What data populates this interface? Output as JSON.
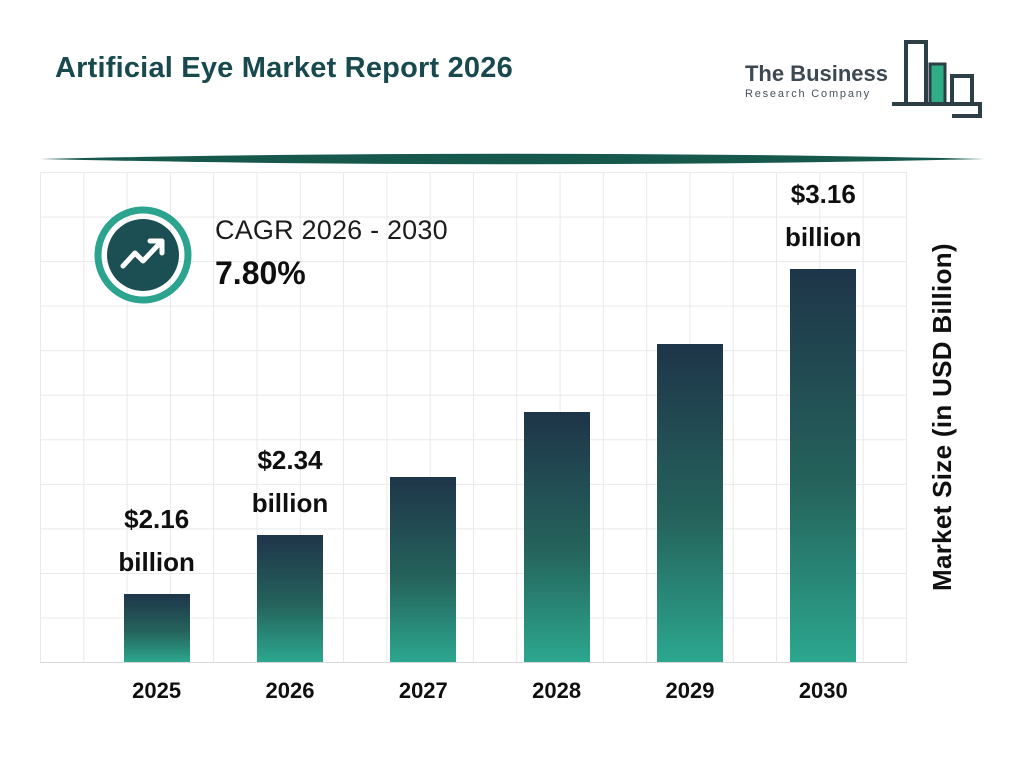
{
  "header": {
    "title": "Artificial Eye Market Report 2026",
    "logo": {
      "line1": "The Business",
      "line2": "Research Company"
    }
  },
  "cagr": {
    "label": "CAGR 2026 - 2030",
    "value": "7.80%"
  },
  "chart_data": {
    "type": "bar",
    "title": "Artificial Eye Market Report 2026",
    "categories": [
      "2025",
      "2026",
      "2027",
      "2028",
      "2029",
      "2030"
    ],
    "values": [
      2.16,
      2.34,
      2.52,
      2.72,
      2.93,
      3.16
    ],
    "bar_labels": [
      "$2.16 billion",
      "$2.34 billion",
      null,
      null,
      null,
      "$3.16 billion"
    ],
    "unit": "USD Billion",
    "ylabel": "Market Size (in USD Billion)",
    "xlabel": "",
    "ylim": [
      1.95,
      3.45
    ],
    "grid": true,
    "annotation": "CAGR 2026 - 2030: 7.80%",
    "colors": {
      "bar_gradient_top": "#1e3549",
      "bar_gradient_bottom": "#2ca78f",
      "title_text": "#17494e",
      "badge_ring": "#2ba38e",
      "badge_fill": "#1c4f53",
      "divider": "#17584d",
      "grid_line": "#e9e9e9",
      "label_text": "#0f0f0f"
    }
  }
}
